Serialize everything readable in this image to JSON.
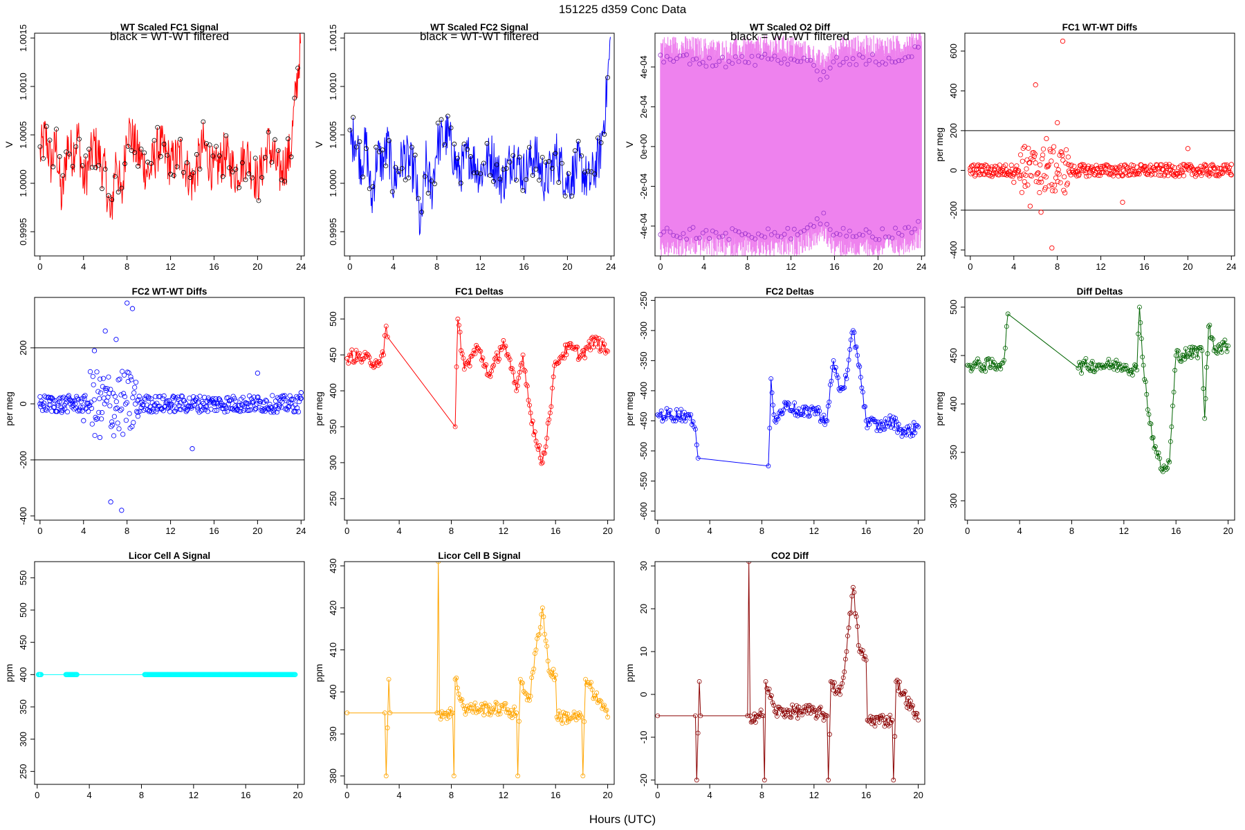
{
  "page_title": "151225    d359    Conc Data",
  "x_axis_label": "Hours (UTC)",
  "chart_data": [
    {
      "id": "p1",
      "type": "line",
      "title": "WT Scaled FC1 Signal",
      "note": "black = WT-WT filtered",
      "ylabel": "V",
      "color": "#ff0000",
      "xlim": [
        -0.5,
        24.3
      ],
      "ylim": [
        0.99925,
        1.00155
      ],
      "xticks": [
        0,
        4,
        8,
        12,
        16,
        20,
        24
      ],
      "yticks": [
        0.9995,
        1.0,
        1.0005,
        1.001,
        1.0015
      ],
      "ytick_labels": [
        "0.9995",
        "1.0000",
        "1.0005",
        "1.0010",
        "1.0015"
      ],
      "series": [
        {
          "name": "signal",
          "x": [
            0,
            0.5,
            1,
            1.5,
            2,
            2.5,
            3,
            3.5,
            4,
            5,
            6,
            6.5,
            7,
            7.5,
            8,
            9,
            10,
            11,
            12,
            13,
            14,
            15,
            16,
            17,
            18,
            19,
            20,
            21,
            22,
            23,
            23.5,
            24
          ],
          "y": [
            1.0003,
            1.0005,
            1.0002,
            1.0004,
            0.9998,
            1.0004,
            1.0003,
            1.0005,
            1.0,
            1.0004,
            1.0001,
            0.9996,
            1.0003,
            0.9998,
            1.0006,
            1.0003,
            1.0001,
            1.0004,
            1.0002,
            1.0003,
            1.0,
            1.0004,
            1.0001,
            1.0003,
            1.0001,
            1.0003,
            1.0,
            1.0004,
            1.0001,
            1.0003,
            1.0009,
            1.0015
          ]
        }
      ]
    },
    {
      "id": "p2",
      "type": "line",
      "title": "WT Scaled FC2 Signal",
      "note": "black = WT-WT filtered",
      "ylabel": "V",
      "color": "#0000ff",
      "xlim": [
        -0.5,
        24.3
      ],
      "ylim": [
        0.99925,
        1.00155
      ],
      "xticks": [
        0,
        4,
        8,
        12,
        16,
        20,
        24
      ],
      "yticks": [
        0.9995,
        1.0,
        1.0005,
        1.001,
        1.0015
      ],
      "ytick_labels": [
        "0.9995",
        "1.0000",
        "1.0005",
        "1.0010",
        "1.0015"
      ],
      "series": [
        {
          "name": "signal",
          "x": [
            0,
            0.5,
            1,
            1.5,
            2,
            2.5,
            3,
            3.5,
            4,
            5,
            6,
            6.5,
            7,
            7.5,
            8,
            9,
            10,
            11,
            12,
            13,
            14,
            15,
            16,
            17,
            18,
            19,
            20,
            21,
            22,
            23,
            23.5,
            24
          ],
          "y": [
            1.0004,
            1.0005,
            1.0002,
            1.0004,
            0.9998,
            1.0003,
            1.0002,
            1.0004,
            1.0,
            1.0003,
            1.0001,
            0.9995,
            1.0002,
            0.9999,
            1.0004,
            1.0005,
            1.0001,
            1.0003,
            1.0001,
            1.0003,
            1.0,
            1.0003,
            1.0001,
            1.0003,
            1.0,
            1.0003,
            1.0,
            1.0002,
            1.0,
            1.0003,
            1.0008,
            1.0015
          ]
        }
      ]
    },
    {
      "id": "p3",
      "type": "line",
      "title": "WT Scaled O2 Diff",
      "note": "black = WT-WT filtered",
      "ylabel": "V",
      "color": "#ee82ee",
      "xlim": [
        -0.5,
        24.3
      ],
      "ylim": [
        -0.00055,
        0.00057
      ],
      "xticks": [
        0,
        4,
        8,
        12,
        16,
        20,
        24
      ],
      "yticks": [
        -0.0004,
        -0.0002,
        0,
        0.0002,
        0.0004
      ],
      "ytick_labels": [
        "-4e-04",
        "-2e-04",
        "0e+00",
        "2e-04",
        "4e-04"
      ],
      "series": [
        {
          "name": "upper",
          "x": [
            0,
            2,
            4,
            6,
            8,
            10,
            12,
            14,
            15,
            16,
            18,
            20,
            22,
            24
          ],
          "y": [
            0.00044,
            0.00044,
            0.00043,
            0.00042,
            0.00043,
            0.00044,
            0.00044,
            0.0004,
            0.00035,
            0.00043,
            0.00044,
            0.00044,
            0.00044,
            0.00049
          ]
        },
        {
          "name": "lower",
          "x": [
            0,
            2,
            4,
            6,
            8,
            10,
            12,
            14,
            15,
            16,
            18,
            20,
            22,
            24
          ],
          "y": [
            -0.00044,
            -0.00044,
            -0.00043,
            -0.00044,
            -0.00045,
            -0.00044,
            -0.00044,
            -0.0004,
            -0.00036,
            -0.00044,
            -0.00044,
            -0.00044,
            -0.00043,
            -0.00039
          ]
        }
      ]
    },
    {
      "id": "p4",
      "type": "scatter",
      "title": "FC1 WT-WT Diffs",
      "ylabel": "per meg",
      "color": "#ff0000",
      "xlim": [
        -0.5,
        24.3
      ],
      "ylim": [
        -430,
        690
      ],
      "xticks": [
        0,
        4,
        8,
        12,
        16,
        20,
        24
      ],
      "yticks": [
        -400,
        -200,
        0,
        200,
        400,
        600
      ],
      "ytick_labels": [
        "-400",
        "-200",
        "0",
        "200",
        "400",
        "600"
      ],
      "hlines": [
        200,
        -200
      ],
      "points": {
        "x": [
          0,
          1,
          2,
          3,
          4,
          5,
          5.5,
          6,
          6.5,
          7,
          7.5,
          8,
          8.5,
          9,
          10,
          12,
          14,
          16,
          18,
          20,
          22,
          24
        ],
        "y": [
          0,
          20,
          -30,
          10,
          -60,
          120,
          -180,
          430,
          -210,
          160,
          -390,
          240,
          650,
          30,
          -20,
          10,
          -160,
          0,
          20,
          110,
          -10,
          30
        ]
      }
    },
    {
      "id": "p5",
      "type": "scatter",
      "title": "FC2 WT-WT Diffs",
      "ylabel": "per meg",
      "color": "#0000ff",
      "xlim": [
        -0.5,
        24.3
      ],
      "ylim": [
        -415,
        380
      ],
      "xticks": [
        0,
        4,
        8,
        12,
        16,
        20,
        24
      ],
      "yticks": [
        -400,
        -200,
        0,
        200
      ],
      "ytick_labels": [
        "-400",
        "-200",
        "0",
        "200"
      ],
      "hlines": [
        200,
        -200
      ],
      "points": {
        "x": [
          0,
          1,
          2,
          3,
          4,
          5,
          5.5,
          6,
          6.5,
          7,
          7.5,
          8,
          8.5,
          9,
          10,
          12,
          14,
          16,
          18,
          20,
          22,
          24
        ],
        "y": [
          0,
          20,
          -30,
          10,
          -60,
          190,
          -120,
          260,
          -350,
          230,
          -380,
          360,
          340,
          -30,
          20,
          -10,
          -160,
          0,
          10,
          110,
          -10,
          40
        ]
      }
    },
    {
      "id": "p6",
      "type": "line",
      "title": "FC1 Deltas",
      "ylabel": "per meg",
      "color": "#ff0000",
      "xlim": [
        -0.2,
        20.5
      ],
      "ylim": [
        220,
        530
      ],
      "xticks": [
        0,
        4,
        8,
        12,
        16,
        20
      ],
      "yticks": [
        250,
        300,
        350,
        400,
        450,
        500
      ],
      "ytick_labels": [
        "250",
        "300",
        "350",
        "400",
        "450",
        "500"
      ],
      "series": [
        {
          "name": "delta",
          "x": [
            0,
            0.2,
            2.3,
            2.8,
            3.0,
            3.1,
            8.3,
            8.5,
            9,
            10,
            11,
            12,
            13,
            13.5,
            14,
            14.5,
            15,
            15.5,
            16,
            17,
            18,
            19,
            20
          ],
          "y": [
            445,
            450,
            440,
            450,
            490,
            475,
            350,
            500,
            430,
            460,
            420,
            470,
            400,
            450,
            380,
            330,
            300,
            360,
            440,
            460,
            450,
            470,
            455
          ]
        }
      ]
    },
    {
      "id": "p7",
      "type": "line",
      "title": "FC2 Deltas",
      "ylabel": "per meg",
      "color": "#0000ff",
      "xlim": [
        -0.2,
        20.5
      ],
      "ylim": [
        -615,
        -245
      ],
      "xticks": [
        0,
        4,
        8,
        12,
        16,
        20
      ],
      "yticks": [
        -600,
        -550,
        -500,
        -450,
        -400,
        -350,
        -300,
        -250
      ],
      "ytick_labels": [
        "-600",
        "-550",
        "-500",
        "-450",
        "-400",
        "-350",
        "-300",
        "-250"
      ],
      "series": [
        {
          "name": "delta",
          "x": [
            0,
            0.2,
            2.3,
            2.8,
            3.0,
            3.1,
            8.5,
            8.7,
            9,
            10,
            11,
            12,
            13,
            13.5,
            14,
            14.5,
            15,
            15.5,
            16,
            17,
            18,
            19,
            20
          ],
          "y": [
            -440,
            -440,
            -440,
            -460,
            -490,
            -512,
            -525,
            -380,
            -450,
            -420,
            -440,
            -430,
            -450,
            -350,
            -400,
            -380,
            -300,
            -360,
            -450,
            -460,
            -450,
            -470,
            -460
          ]
        }
      ]
    },
    {
      "id": "p8",
      "type": "line",
      "title": "Diff Deltas",
      "ylabel": "per meg",
      "color": "#006400",
      "xlim": [
        -0.2,
        20.5
      ],
      "ylim": [
        280,
        510
      ],
      "xticks": [
        0,
        4,
        8,
        12,
        16,
        20
      ],
      "yticks": [
        300,
        350,
        400,
        450,
        500
      ],
      "ytick_labels": [
        "300",
        "350",
        "400",
        "450",
        "500"
      ],
      "series": [
        {
          "name": "delta",
          "x": [
            0,
            0.2,
            2.3,
            2.8,
            3.0,
            3.1,
            8.5,
            9,
            10,
            11,
            12,
            13,
            13.2,
            13.5,
            14,
            14.5,
            15,
            15.5,
            16,
            17,
            18,
            18.2,
            18.5,
            19,
            20
          ],
          "y": [
            440,
            440,
            440,
            445,
            480,
            493,
            437,
            440,
            440,
            440,
            440,
            435,
            500,
            440,
            380,
            350,
            330,
            340,
            450,
            452,
            455,
            385,
            480,
            458,
            460
          ]
        }
      ]
    },
    {
      "id": "p9",
      "type": "scatter",
      "title": "Licor Cell A Signal",
      "ylabel": "ppm",
      "color": "#00ffff",
      "xlim": [
        -0.2,
        20.5
      ],
      "ylim": [
        230,
        575
      ],
      "xticks": [
        0,
        4,
        8,
        12,
        16,
        20
      ],
      "yticks": [
        250,
        300,
        350,
        400,
        450,
        500,
        550
      ],
      "ytick_labels": [
        "250",
        "300",
        "350",
        "400",
        "450",
        "500",
        "550"
      ],
      "points": {
        "x": [
          0.1,
          2.3,
          2.5,
          2.7,
          2.9,
          3.0,
          8.3,
          10,
          12,
          14,
          16,
          18,
          19.8
        ],
        "y": [
          400,
          400,
          400,
          400,
          400,
          400,
          400,
          400,
          400,
          400,
          400,
          400,
          400
        ]
      }
    },
    {
      "id": "p10",
      "type": "line",
      "title": "Licor Cell B Signal",
      "ylabel": "ppm",
      "color": "#ffa500",
      "xlim": [
        -0.2,
        20.5
      ],
      "ylim": [
        378,
        431
      ],
      "xticks": [
        0,
        4,
        8,
        12,
        16,
        20
      ],
      "yticks": [
        380,
        390,
        400,
        410,
        420,
        430
      ],
      "ytick_labels": [
        "380",
        "390",
        "400",
        "410",
        "420",
        "430"
      ],
      "series": [
        {
          "name": "signal",
          "x": [
            0,
            2.9,
            3.0,
            3.2,
            3.3,
            6.9,
            7.0,
            7.1,
            8.1,
            8.2,
            8.3,
            9,
            10,
            12,
            13,
            13.1,
            13.3,
            14,
            14.5,
            15,
            15.5,
            16,
            16.1,
            18,
            18.1,
            18.3,
            20
          ],
          "y": [
            395,
            395,
            380,
            403,
            395,
            395,
            431,
            395,
            395,
            380,
            403,
            396,
            396,
            396,
            395,
            380,
            403,
            398,
            410,
            420,
            405,
            404,
            394,
            394,
            380,
            403,
            394
          ]
        }
      ]
    },
    {
      "id": "p11",
      "type": "line",
      "title": "CO2 Diff",
      "ylabel": "ppm",
      "color": "#8b0000",
      "xlim": [
        -0.2,
        20.5
      ],
      "ylim": [
        -21,
        31
      ],
      "xticks": [
        0,
        4,
        8,
        12,
        16,
        20
      ],
      "yticks": [
        -20,
        -10,
        0,
        10,
        20,
        30
      ],
      "ytick_labels": [
        "-20",
        "-10",
        "0",
        "10",
        "20",
        "30"
      ],
      "series": [
        {
          "name": "diff",
          "x": [
            0,
            2.9,
            3.0,
            3.2,
            3.3,
            6.9,
            7.0,
            7.1,
            8.1,
            8.2,
            8.3,
            9,
            10,
            12,
            13,
            13.1,
            13.3,
            14,
            14.5,
            15,
            15.5,
            16,
            16.1,
            18,
            18.1,
            18.3,
            20
          ],
          "y": [
            -5,
            -5,
            -20,
            3,
            -5,
            -5,
            31,
            -5,
            -5,
            -20,
            3,
            -4,
            -4,
            -4,
            -5,
            -20,
            3,
            0,
            10,
            25,
            10,
            8,
            -6,
            -6,
            -20,
            3,
            -6
          ]
        }
      ]
    }
  ]
}
